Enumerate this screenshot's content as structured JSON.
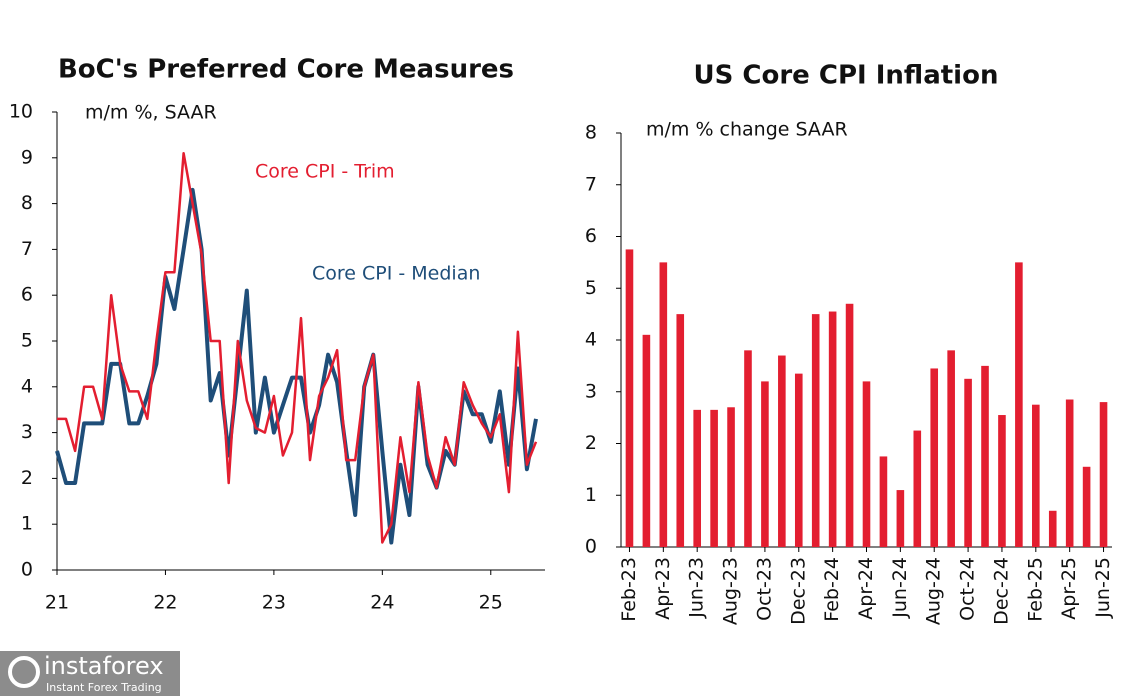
{
  "chart_data": [
    {
      "type": "line",
      "title": "BoC's Preferred Core Measures",
      "y_axis_label": "m/m %, SAAR",
      "x": [
        21,
        21.083,
        21.167,
        21.25,
        21.333,
        21.417,
        21.5,
        21.583,
        21.667,
        21.75,
        21.833,
        21.917,
        22,
        22.083,
        22.167,
        22.25,
        22.333,
        22.417,
        22.5,
        22.583,
        22.667,
        22.75,
        22.833,
        22.917,
        23,
        23.083,
        23.167,
        23.25,
        23.333,
        23.417,
        23.5,
        23.583,
        23.667,
        23.75,
        23.833,
        23.917,
        24,
        24.083,
        24.167,
        24.25,
        24.333,
        24.417,
        24.5,
        24.583,
        24.667,
        24.75,
        24.833,
        24.917,
        25,
        25.083,
        25.167,
        25.25,
        25.333,
        25.417
      ],
      "series": [
        {
          "name": "Core CPI - Median",
          "color": "#1f4e79",
          "values": [
            2.6,
            1.9,
            1.9,
            3.2,
            3.2,
            3.2,
            4.5,
            4.5,
            3.2,
            3.2,
            3.8,
            4.5,
            6.4,
            5.7,
            7.0,
            8.3,
            7.0,
            3.7,
            4.3,
            2.5,
            4.3,
            6.1,
            3.0,
            4.2,
            3.0,
            3.6,
            4.2,
            4.2,
            3.0,
            3.6,
            4.7,
            4.1,
            2.6,
            1.2,
            4.0,
            4.7,
            2.6,
            0.6,
            2.3,
            1.2,
            4.0,
            2.3,
            1.8,
            2.6,
            2.3,
            3.9,
            3.4,
            3.4,
            2.8,
            3.9,
            2.3,
            4.4,
            2.2,
            3.3
          ]
        },
        {
          "name": "Core CPI - Trim",
          "color": "#e31e30",
          "values": [
            3.3,
            3.3,
            2.6,
            4.0,
            4.0,
            3.3,
            6.0,
            4.5,
            3.9,
            3.9,
            3.3,
            5.0,
            6.5,
            6.5,
            9.1,
            8.0,
            6.9,
            5.0,
            5.0,
            1.9,
            5.0,
            3.7,
            3.1,
            3.0,
            3.8,
            2.5,
            3.0,
            5.5,
            2.4,
            3.8,
            4.2,
            4.8,
            2.4,
            2.4,
            4.0,
            4.7,
            0.6,
            1.0,
            2.9,
            1.7,
            4.1,
            2.5,
            1.8,
            2.9,
            2.3,
            4.1,
            3.6,
            3.2,
            2.9,
            3.4,
            1.7,
            5.2,
            2.3,
            2.8
          ]
        }
      ],
      "xlim": [
        21,
        25.5
      ],
      "xticks": [
        21,
        22,
        23,
        24,
        25
      ],
      "ylim": [
        0,
        10
      ],
      "yticks": [
        0,
        1,
        2,
        3,
        4,
        5,
        6,
        7,
        8,
        9,
        10
      ]
    },
    {
      "type": "bar",
      "title": "US Core CPI Inflation",
      "y_axis_label": "m/m % change SAAR",
      "color": "#e31e30",
      "categories": [
        "Feb-23",
        null,
        "Apr-23",
        null,
        "Jun-23",
        null,
        "Aug-23",
        null,
        "Oct-23",
        null,
        "Dec-23",
        null,
        "Feb-24",
        null,
        "Apr-24",
        null,
        "Jun-24",
        null,
        "Aug-24",
        null,
        "Oct-24",
        null,
        "Dec-24",
        null,
        "Feb-25",
        null,
        "Apr-25",
        null,
        "Jun-25"
      ],
      "values": [
        5.75,
        4.1,
        5.5,
        4.5,
        2.65,
        2.65,
        2.7,
        3.8,
        3.2,
        3.7,
        3.35,
        4.5,
        4.55,
        4.7,
        3.2,
        1.75,
        1.1,
        2.25,
        3.45,
        3.8,
        3.25,
        3.5,
        2.55,
        5.5,
        2.75,
        0.7,
        2.85,
        1.55,
        2.8
      ],
      "ylim": [
        0,
        8
      ],
      "yticks": [
        0,
        1,
        2,
        3,
        4,
        5,
        6,
        7,
        8
      ]
    }
  ],
  "watermark": {
    "brand": "instaforex",
    "tagline": "Instant Forex Trading"
  }
}
